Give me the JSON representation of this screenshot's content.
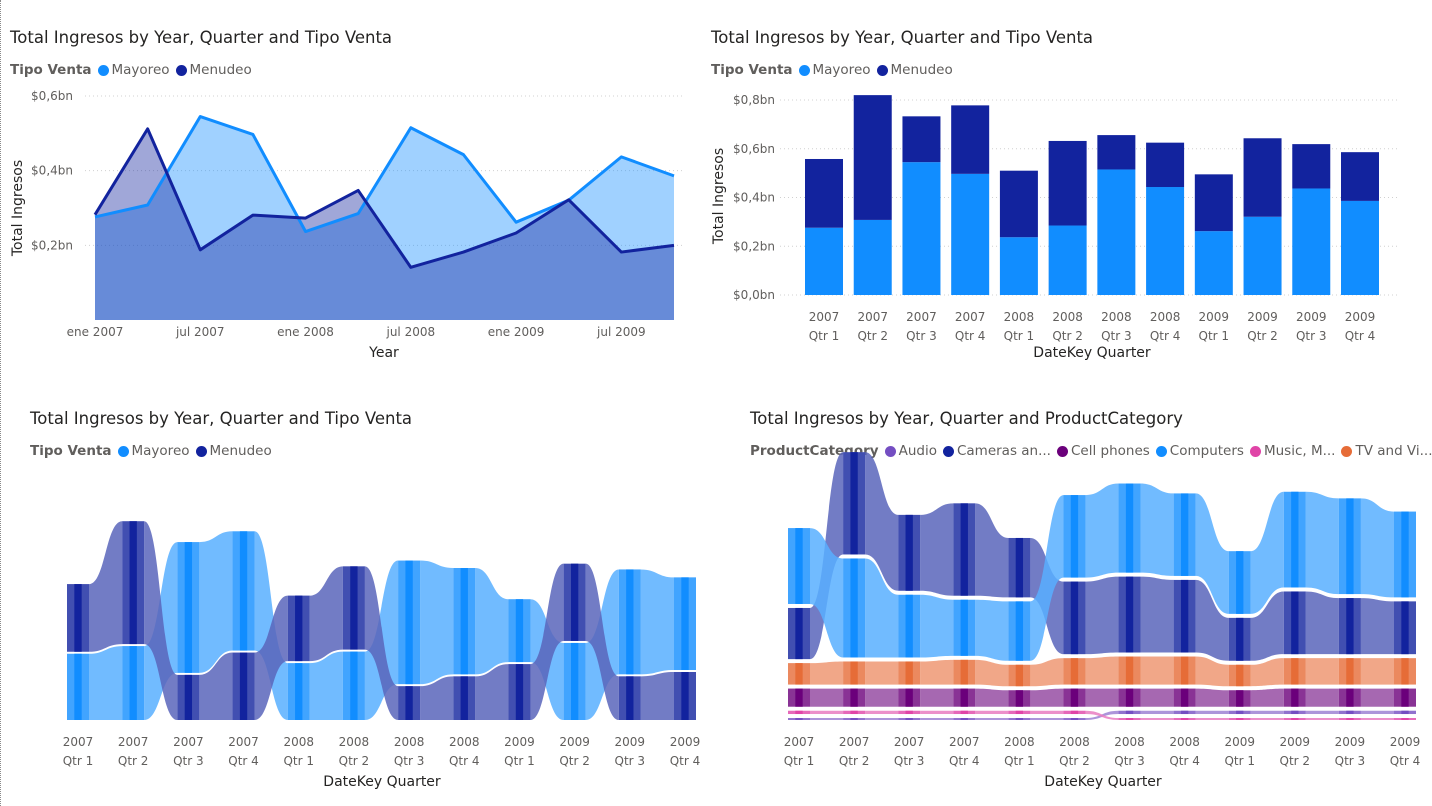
{
  "colors": {
    "mayoreo": "#118DFF",
    "menudeo": "#12239E",
    "audio": "#744EC2",
    "cameras": "#12239E",
    "cell_phones": "#6B007B",
    "computers": "#118DFF",
    "music": "#E044A7",
    "tv": "#E66C37"
  },
  "visuals": {
    "area": {
      "title": "Total Ingresos by Year, Quarter and Tipo Venta",
      "legend_title": "Tipo Venta",
      "legend_items": [
        "Mayoreo",
        "Menudeo"
      ]
    },
    "bar": {
      "title": "Total Ingresos by Year, Quarter and Tipo Venta",
      "legend_title": "Tipo Venta",
      "legend_items": [
        "Mayoreo",
        "Menudeo"
      ]
    },
    "ribbon": {
      "title": "Total Ingresos by Year, Quarter and Tipo Venta",
      "legend_title": "Tipo Venta",
      "legend_items": [
        "Mayoreo",
        "Menudeo"
      ]
    },
    "ribbon_cat": {
      "title": "Total Ingresos by Year, Quarter and ProductCategory",
      "legend_title": "ProductCategory",
      "legend_items": [
        "Audio",
        "Cameras an...",
        "Cell phones",
        "Computers",
        "Music, M...",
        "TV and Vi..."
      ]
    }
  },
  "chart_data": [
    {
      "type": "area",
      "title": "Total Ingresos by Year, Quarter and Tipo Venta",
      "xlabel": "Year",
      "ylabel": "Total Ingresos",
      "x_ticks": [
        "ene 2007",
        "jul 2007",
        "ene 2008",
        "jul 2008",
        "ene 2009",
        "jul 2009"
      ],
      "y_ticks": [
        "$0,2bn",
        "$0,4bn",
        "$0,6bn"
      ],
      "ylim": [
        0,
        0.6
      ],
      "grid": true,
      "legend": "top-left",
      "x": [
        "2007 Qtr 1",
        "2007 Qtr 2",
        "2007 Qtr 3",
        "2007 Qtr 4",
        "2008 Qtr 1",
        "2008 Qtr 2",
        "2008 Qtr 3",
        "2008 Qtr 4",
        "2009 Qtr 1",
        "2009 Qtr 2",
        "2009 Qtr 3",
        "2009 Qtr 4"
      ],
      "series": [
        {
          "name": "Mayoreo",
          "values": [
            0.276,
            0.308,
            0.545,
            0.497,
            0.237,
            0.285,
            0.515,
            0.443,
            0.262,
            0.321,
            0.437,
            0.386
          ]
        },
        {
          "name": "Menudeo",
          "values": [
            0.282,
            0.512,
            0.188,
            0.281,
            0.273,
            0.347,
            0.141,
            0.182,
            0.233,
            0.322,
            0.182,
            0.2
          ]
        }
      ]
    },
    {
      "type": "bar",
      "stacked": true,
      "title": "Total Ingresos by Year, Quarter and Tipo Venta",
      "xlabel": "DateKey Quarter",
      "ylabel": "Total Ingresos",
      "y_ticks": [
        "$0,0bn",
        "$0,2bn",
        "$0,4bn",
        "$0,6bn",
        "$0,8bn"
      ],
      "ylim": [
        0,
        0.8
      ],
      "grid": true,
      "legend": "top-left",
      "categories": [
        [
          "2007",
          "Qtr 1"
        ],
        [
          "2007",
          "Qtr 2"
        ],
        [
          "2007",
          "Qtr 3"
        ],
        [
          "2007",
          "Qtr 4"
        ],
        [
          "2008",
          "Qtr 1"
        ],
        [
          "2008",
          "Qtr 2"
        ],
        [
          "2008",
          "Qtr 3"
        ],
        [
          "2008",
          "Qtr 4"
        ],
        [
          "2009",
          "Qtr 1"
        ],
        [
          "2009",
          "Qtr 2"
        ],
        [
          "2009",
          "Qtr 3"
        ],
        [
          "2009",
          "Qtr 4"
        ]
      ],
      "series": [
        {
          "name": "Mayoreo",
          "values": [
            0.276,
            0.308,
            0.545,
            0.497,
            0.237,
            0.285,
            0.515,
            0.443,
            0.262,
            0.321,
            0.437,
            0.386
          ]
        },
        {
          "name": "Menudeo",
          "values": [
            0.282,
            0.512,
            0.188,
            0.281,
            0.273,
            0.347,
            0.141,
            0.182,
            0.233,
            0.322,
            0.182,
            0.2
          ]
        }
      ]
    },
    {
      "type": "area",
      "subtype": "ribbon",
      "title": "Total Ingresos by Year, Quarter and Tipo Venta",
      "xlabel": "DateKey Quarter",
      "legend": "top-left",
      "categories": [
        [
          "2007",
          "Qtr 1"
        ],
        [
          "2007",
          "Qtr 2"
        ],
        [
          "2007",
          "Qtr 3"
        ],
        [
          "2007",
          "Qtr 4"
        ],
        [
          "2008",
          "Qtr 1"
        ],
        [
          "2008",
          "Qtr 2"
        ],
        [
          "2008",
          "Qtr 3"
        ],
        [
          "2008",
          "Qtr 4"
        ],
        [
          "2009",
          "Qtr 1"
        ],
        [
          "2009",
          "Qtr 2"
        ],
        [
          "2009",
          "Qtr 3"
        ],
        [
          "2009",
          "Qtr 4"
        ]
      ],
      "series": [
        {
          "name": "Mayoreo",
          "values": [
            0.276,
            0.308,
            0.545,
            0.497,
            0.237,
            0.285,
            0.515,
            0.443,
            0.262,
            0.321,
            0.437,
            0.386
          ]
        },
        {
          "name": "Menudeo",
          "values": [
            0.282,
            0.512,
            0.188,
            0.281,
            0.273,
            0.347,
            0.141,
            0.182,
            0.233,
            0.322,
            0.182,
            0.2
          ]
        }
      ]
    },
    {
      "type": "area",
      "subtype": "ribbon",
      "title": "Total Ingresos by Year, Quarter and ProductCategory",
      "xlabel": "DateKey Quarter",
      "legend": "top-left",
      "categories": [
        [
          "2007",
          "Qtr 1"
        ],
        [
          "2007",
          "Qtr 2"
        ],
        [
          "2007",
          "Qtr 3"
        ],
        [
          "2007",
          "Qtr 4"
        ],
        [
          "2008",
          "Qtr 1"
        ],
        [
          "2008",
          "Qtr 2"
        ],
        [
          "2008",
          "Qtr 3"
        ],
        [
          "2008",
          "Qtr 4"
        ],
        [
          "2009",
          "Qtr 1"
        ],
        [
          "2009",
          "Qtr 2"
        ],
        [
          "2009",
          "Qtr 3"
        ],
        [
          "2009",
          "Qtr 4"
        ]
      ],
      "series": [
        {
          "name": "Audio",
          "values": [
            0.006,
            0.006,
            0.006,
            0.006,
            0.006,
            0.006,
            0.01,
            0.01,
            0.01,
            0.01,
            0.01,
            0.01
          ]
        },
        {
          "name": "Cameras an...",
          "values": [
            0.155,
            0.31,
            0.23,
            0.28,
            0.18,
            0.22,
            0.23,
            0.22,
            0.13,
            0.19,
            0.17,
            0.16
          ]
        },
        {
          "name": "Cell phones",
          "values": [
            0.055,
            0.055,
            0.055,
            0.055,
            0.05,
            0.055,
            0.055,
            0.055,
            0.05,
            0.055,
            0.055,
            0.055
          ]
        },
        {
          "name": "Computers",
          "values": [
            0.23,
            0.3,
            0.19,
            0.17,
            0.18,
            0.25,
            0.27,
            0.25,
            0.19,
            0.29,
            0.29,
            0.26
          ]
        },
        {
          "name": "Music, M...",
          "values": [
            0.01,
            0.01,
            0.01,
            0.01,
            0.01,
            0.01,
            0.006,
            0.006,
            0.006,
            0.006,
            0.006,
            0.006
          ]
        },
        {
          "name": "TV and Vi...",
          "values": [
            0.065,
            0.07,
            0.07,
            0.075,
            0.065,
            0.08,
            0.085,
            0.085,
            0.065,
            0.08,
            0.08,
            0.08
          ]
        }
      ]
    }
  ]
}
